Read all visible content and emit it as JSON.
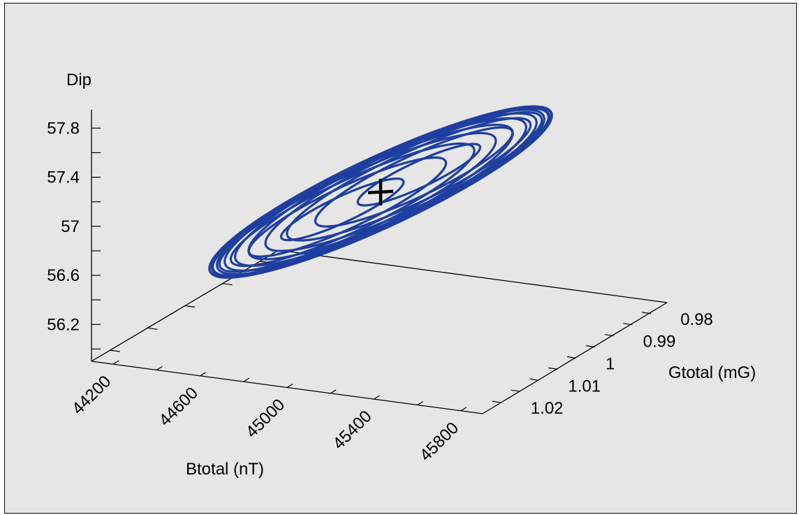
{
  "chart_data": {
    "type": "3d-ellipsoid",
    "title": "",
    "x_axis": {
      "label": "Btotal (nT)",
      "ticks": [
        44200,
        44600,
        45000,
        45400,
        45800
      ],
      "tick_labels": [
        "44200",
        "44600",
        "45000",
        "45400",
        "45800"
      ],
      "range": [
        44100,
        45900
      ]
    },
    "y_axis": {
      "label": "Gtotal (mG)",
      "ticks": [
        0.98,
        0.99,
        1.0,
        1.01,
        1.02
      ],
      "tick_labels": [
        "0.98",
        "0.99",
        "1",
        "1.01",
        "1.02"
      ],
      "range": [
        0.975,
        1.025
      ]
    },
    "z_axis": {
      "label": "Dip",
      "ticks": [
        56.2,
        56.6,
        57.0,
        57.4,
        57.8
      ],
      "tick_labels": [
        "56.2",
        "56.6",
        "57",
        "57.4",
        "57.8"
      ],
      "range": [
        55.9,
        57.95
      ]
    },
    "ellipsoid": {
      "center": {
        "Btotal": 45000,
        "Gtotal": 1.0,
        "Dip": 57.04
      },
      "color": "#1f3fa0",
      "ring_count": 16
    },
    "marker": {
      "shape": "plus",
      "Btotal": 45000,
      "Gtotal": 1.0,
      "Dip": 57.04,
      "color": "#000000"
    },
    "background": "#e6e6e6",
    "grid": false,
    "legend": "none"
  }
}
